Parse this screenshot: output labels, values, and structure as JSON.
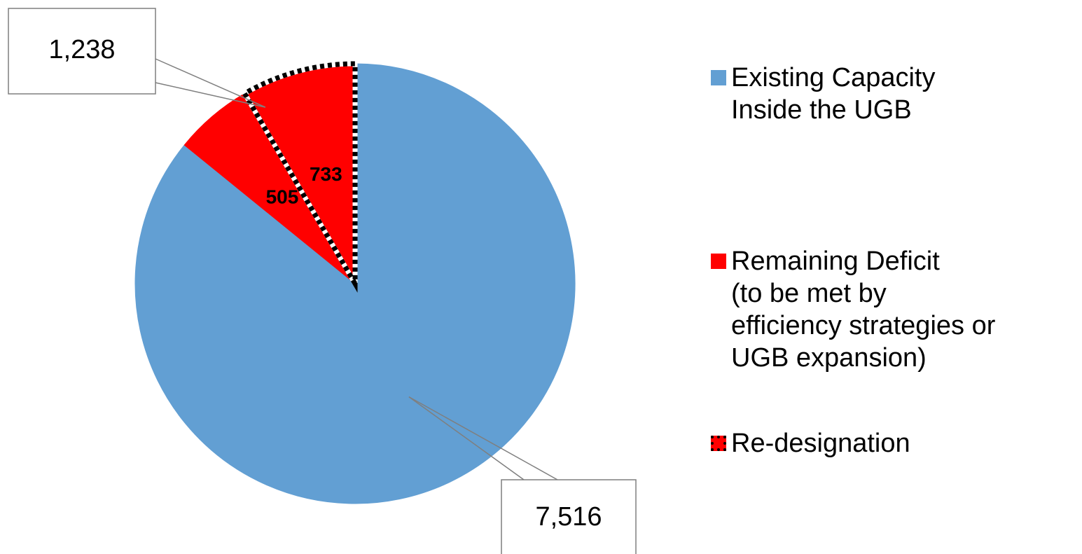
{
  "chart_data": {
    "type": "pie",
    "start_angle_deg": 0,
    "direction": "clockwise",
    "slices": [
      {
        "name": "Existing Capacity Inside the UGB",
        "value": 7516,
        "label": "7,516",
        "color": "#629fd3",
        "style": "solid",
        "label_style": "callout"
      },
      {
        "name": "Remaining Deficit (to be met by efficiency strategies or UGB expansion)",
        "value": 505,
        "label": "505",
        "color": "#ff0000",
        "style": "solid",
        "label_style": "inside"
      },
      {
        "name": "Re-designation",
        "value": 733,
        "label": "733",
        "color": "#ff0000",
        "style": "dotted-outline",
        "label_style": "inside"
      }
    ],
    "group_callout": {
      "label": "1,238",
      "slices": [
        1,
        2
      ]
    },
    "legend": {
      "placement": "right",
      "entries": [
        {
          "label": "Existing Capacity\nInside the UGB",
          "color": "#629fd3",
          "style": "solid"
        },
        {
          "label": "Remaining Deficit\n(to be met by\nefficiency strategies or\nUGB expansion)",
          "color": "#ff0000",
          "style": "solid"
        },
        {
          "label": "Re-designation",
          "color": "#ff0000",
          "style": "dotted-outline"
        }
      ]
    }
  }
}
